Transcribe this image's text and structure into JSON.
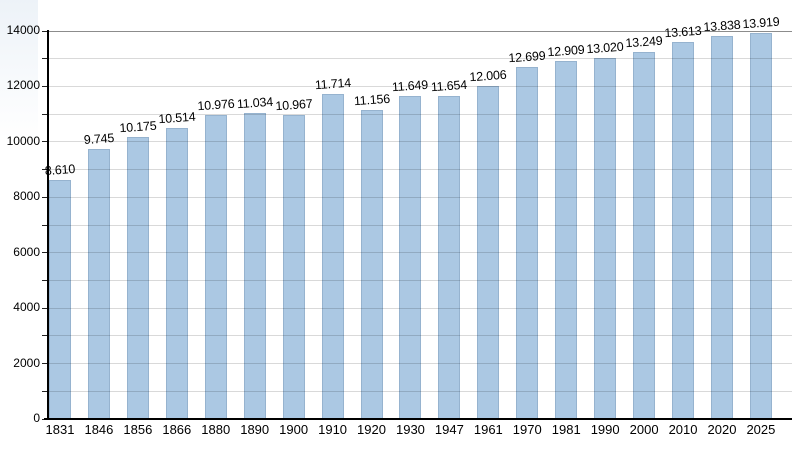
{
  "chart_data": {
    "type": "bar",
    "title": "",
    "xlabel": "",
    "ylabel": "",
    "categories": [
      "1831",
      "1846",
      "1856",
      "1866",
      "1880",
      "1890",
      "1900",
      "1910",
      "1920",
      "1930",
      "1947",
      "1961",
      "1970",
      "1981",
      "1990",
      "2000",
      "2010",
      "2020",
      "2025"
    ],
    "values": [
      8610,
      9745,
      10175,
      10514,
      10976,
      11034,
      10967,
      11714,
      11156,
      11649,
      11654,
      12006,
      12699,
      12909,
      13020,
      13249,
      13613,
      13838,
      13919
    ],
    "bar_labels": [
      "8.610",
      "9.745",
      "10.175",
      "10.514",
      "10.976",
      "11.034",
      "10.967",
      "11.714",
      "11.156",
      "11.649",
      "11.654",
      "12.006",
      "12.699",
      "12.909",
      "13.020",
      "13.249",
      "13.613",
      "13.838",
      "13.919"
    ],
    "y_tick_labels": [
      "0",
      "2000",
      "4000",
      "6000",
      "8000",
      "10000",
      "12000",
      "14000"
    ],
    "y_tick_values": [
      0,
      2000,
      4000,
      6000,
      8000,
      10000,
      12000,
      14000
    ],
    "gridline_step": 1000,
    "ylim": [
      0,
      14000
    ],
    "grid": "on",
    "legend": "none",
    "bar_color": "#abc8e3",
    "gridline_color": "#d9d9d9",
    "top_gridline_color": "#8c8c8c",
    "axis_color": "#000000"
  }
}
